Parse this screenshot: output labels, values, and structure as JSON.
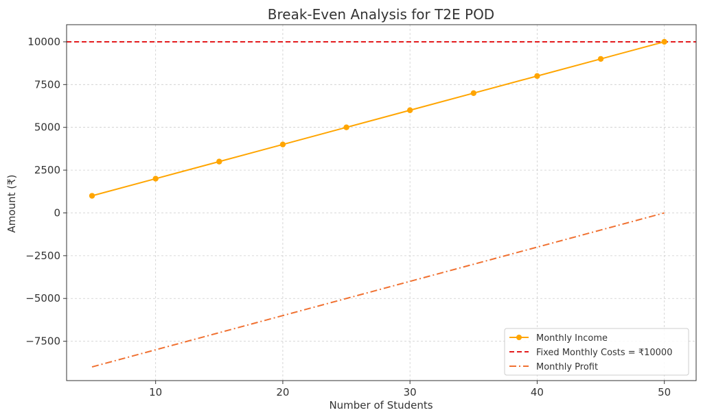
{
  "chart_data": {
    "type": "line",
    "title": "Break-Even Analysis for T2E POD",
    "xlabel": "Number of Students",
    "ylabel": "Amount (₹)",
    "xlim": [
      3,
      52.5
    ],
    "ylim": [
      -9800,
      11000
    ],
    "x_ticks": [
      10,
      20,
      30,
      40,
      50
    ],
    "y_ticks": [
      -7500,
      -5000,
      -2500,
      0,
      2500,
      5000,
      7500,
      10000
    ],
    "y_tick_labels": [
      "−7500",
      "−5000",
      "−2500",
      "0",
      "2500",
      "5000",
      "7500",
      "10000"
    ],
    "grid": true,
    "legend_position": "bottom-right",
    "x": [
      5,
      10,
      15,
      20,
      25,
      30,
      35,
      40,
      45,
      50
    ],
    "series": [
      {
        "name": "Monthly Income",
        "style": "solid-marker",
        "color": "#FFA500",
        "values": [
          1000,
          2000,
          3000,
          4000,
          5000,
          6000,
          7000,
          8000,
          9000,
          10000
        ]
      },
      {
        "name": "Fixed Monthly Costs = ₹10000",
        "style": "dashed-horizontal",
        "color": "#E31A1C",
        "value": 10000
      },
      {
        "name": "Monthly Profit",
        "style": "dashdot",
        "color": "#F07030",
        "values": [
          -9000,
          -8000,
          -7000,
          -6000,
          -5000,
          -4000,
          -3000,
          -2000,
          -1000,
          0
        ]
      }
    ]
  }
}
